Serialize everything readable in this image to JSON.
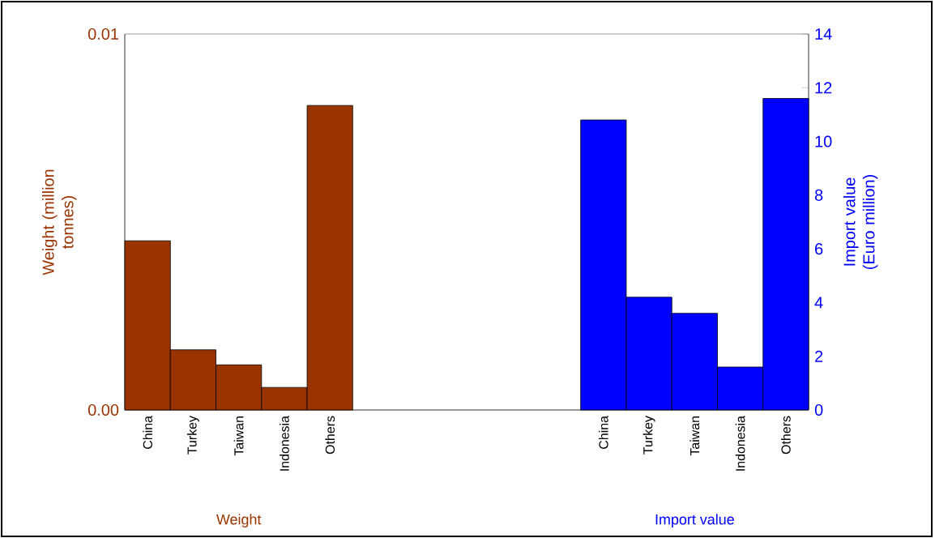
{
  "chart_data": {
    "type": "bar",
    "categories": [
      "China",
      "Turkey",
      "Taiwan",
      "Indonesia",
      "Others",
      null,
      null,
      null,
      null,
      null,
      "China",
      "Turkey",
      "Taiwan",
      "Indonesia",
      "Others"
    ],
    "ylabel": "Weight (million tonnes)",
    "y2label": "Import value (Euro million)",
    "ylim": [
      0,
      0.01
    ],
    "yticks": [
      {
        "value": 0,
        "label": "0.00"
      },
      {
        "value": 0.01,
        "label": "0.01"
      }
    ],
    "y2lim": [
      0,
      14
    ],
    "y2ticks": [
      0,
      2,
      4,
      6,
      8,
      10,
      12,
      14
    ],
    "series": [
      {
        "name": "Weight",
        "color": "#993300",
        "values": [
          0.0045,
          0.0016,
          0.0012,
          0.0006,
          0.0081,
          null,
          null,
          null,
          null,
          null,
          null,
          null,
          null,
          null,
          null
        ]
      },
      {
        "name": "Import value",
        "color": "#0000ff",
        "axis": "y2",
        "values": [
          null,
          null,
          null,
          null,
          null,
          null,
          null,
          null,
          null,
          null,
          10.8,
          4.2,
          3.6,
          1.6,
          11.6
        ]
      }
    ]
  }
}
